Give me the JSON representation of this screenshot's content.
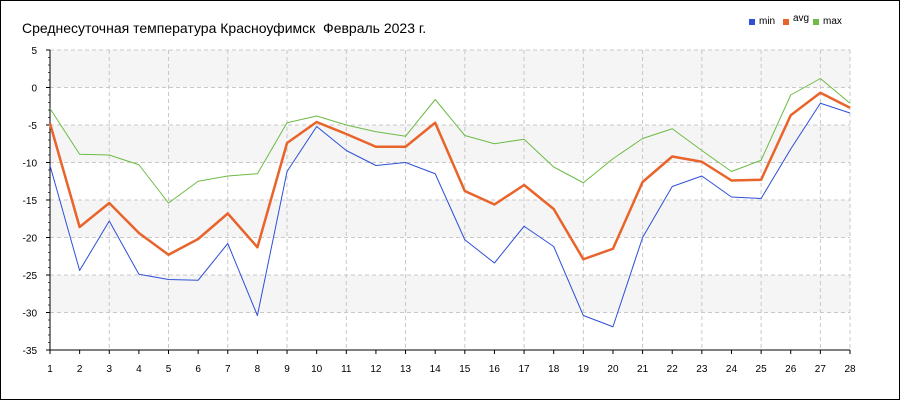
{
  "chart_data": {
    "type": "line",
    "title": "Среднесуточная температура Красноуфимск  Февраль 2023 г.",
    "xlabel": "",
    "ylabel": "",
    "x": [
      1,
      2,
      3,
      4,
      5,
      6,
      7,
      8,
      9,
      10,
      11,
      12,
      13,
      14,
      15,
      16,
      17,
      18,
      19,
      20,
      21,
      22,
      23,
      24,
      25,
      26,
      27,
      28
    ],
    "xlim": [
      1,
      28
    ],
    "ylim": [
      -35,
      5
    ],
    "y_ticks": [
      5,
      0,
      -5,
      -10,
      -15,
      -20,
      -25,
      -30,
      -35
    ],
    "grid": true,
    "legend_position": "top-right",
    "series": [
      {
        "name": "min",
        "color": "#2f4fd8",
        "values": [
          -10.4,
          -24.4,
          -17.8,
          -24.9,
          -25.6,
          -25.7,
          -20.8,
          -30.4,
          -11.2,
          -5.2,
          -8.4,
          -10.4,
          -10.0,
          -11.5,
          -20.3,
          -23.4,
          -18.5,
          -21.2,
          -30.4,
          -31.9,
          -20.0,
          -13.2,
          -11.8,
          -14.6,
          -14.8,
          -8.2,
          -2.1,
          -3.4
        ]
      },
      {
        "name": "avg",
        "color": "#e8642a",
        "values": [
          -4.8,
          -18.6,
          -15.4,
          -19.4,
          -22.3,
          -20.2,
          -16.8,
          -21.3,
          -7.4,
          -4.6,
          -6.2,
          -7.9,
          -7.9,
          -4.7,
          -13.8,
          -15.6,
          -13.0,
          -16.2,
          -22.9,
          -21.5,
          -12.6,
          -9.2,
          -9.9,
          -12.4,
          -12.3,
          -3.7,
          -0.7,
          -2.7
        ]
      },
      {
        "name": "max",
        "color": "#6dbb45",
        "values": [
          -2.8,
          -8.9,
          -9.0,
          -10.3,
          -15.4,
          -12.5,
          -11.8,
          -11.5,
          -4.7,
          -3.8,
          -5.0,
          -5.9,
          -6.5,
          -1.6,
          -6.4,
          -7.5,
          -6.9,
          -10.6,
          -12.7,
          -9.5,
          -6.8,
          -5.5,
          -8.4,
          -11.2,
          -9.7,
          -1.0,
          1.2,
          -2.1
        ]
      }
    ],
    "colors": {
      "band": "#f5f5f5",
      "grid": "#c8c8c8",
      "axis": "#000000"
    }
  }
}
